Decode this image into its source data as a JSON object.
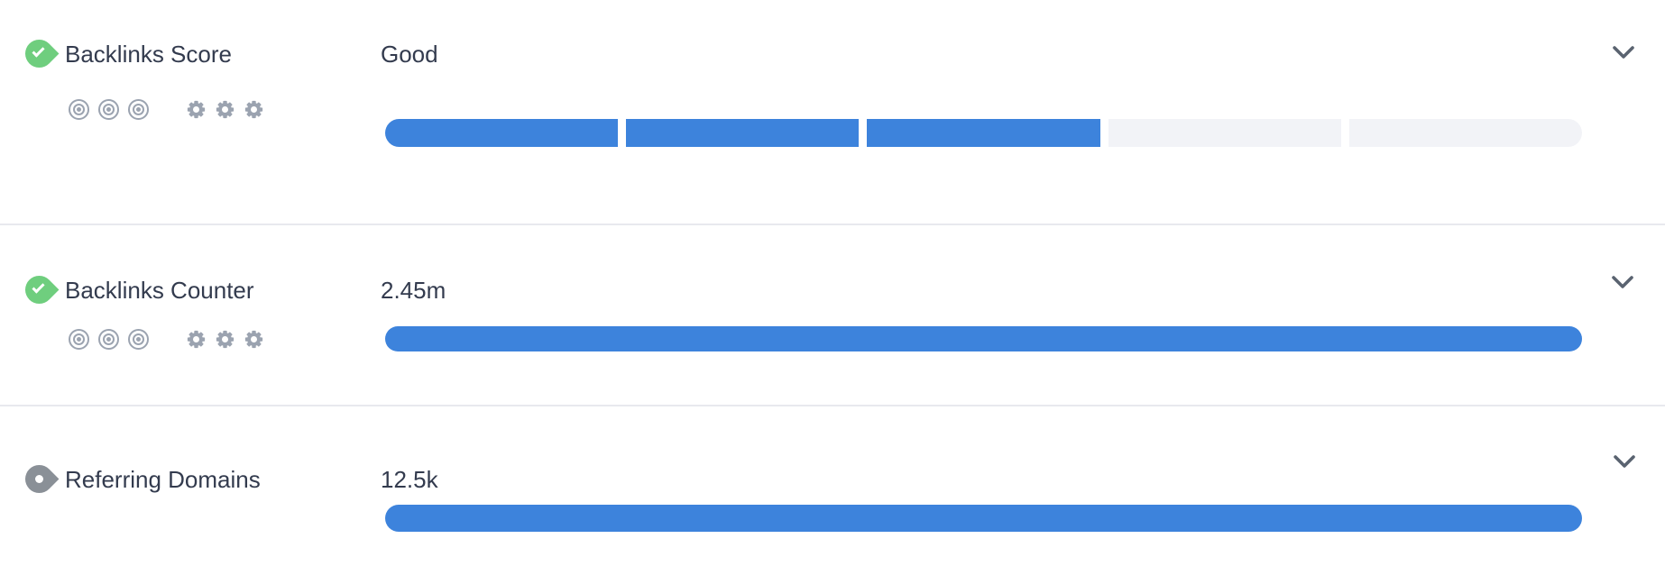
{
  "panel": {
    "name": "Backlinks metrics panel"
  },
  "colors": {
    "accent_blue": "#3d83dc",
    "empty_segment": "#f2f3f7",
    "divider": "#e8e9ee",
    "text": "#333b4e",
    "tool_icon_gray": "#9ba3b0",
    "status_green": "#6fce7e",
    "status_gray": "#8a9097",
    "chevron": "#5a6370"
  },
  "icons": {
    "status_good": "check-pin-icon",
    "status_neutral": "dot-pin-icon",
    "tools": [
      "target-icon",
      "target-icon",
      "target-icon",
      "gear-icon",
      "gear-icon",
      "gear-icon"
    ],
    "expander": "chevron-down-icon"
  },
  "rows": [
    {
      "label": "Backlinks Score",
      "value": "Good",
      "status": "good",
      "bar": {
        "type": "segmented",
        "segments": 5,
        "filled": 3
      },
      "has_tool_icons": true
    },
    {
      "label": "Backlinks Counter",
      "value": "2.45m",
      "status": "good",
      "bar": {
        "type": "full",
        "fill_pct": 100
      },
      "has_tool_icons": true
    },
    {
      "label": "Referring Domains",
      "value": "12.5k",
      "status": "neutral",
      "bar": {
        "type": "full",
        "fill_pct": 100
      },
      "has_tool_icons": false
    }
  ]
}
